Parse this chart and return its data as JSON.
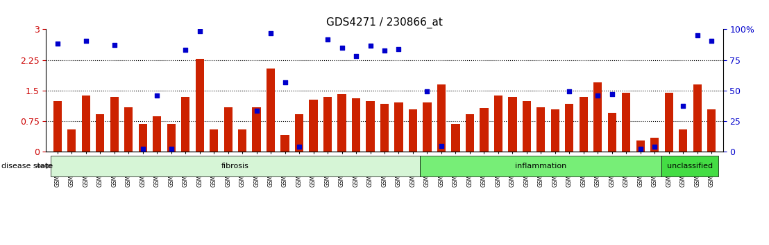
{
  "title": "GDS4271 / 230866_at",
  "samples": [
    "GSM380382",
    "GSM380383",
    "GSM380384",
    "GSM380385",
    "GSM380386",
    "GSM380387",
    "GSM380388",
    "GSM380389",
    "GSM380390",
    "GSM380391",
    "GSM380392",
    "GSM380393",
    "GSM380394",
    "GSM380395",
    "GSM380396",
    "GSM380397",
    "GSM380398",
    "GSM380399",
    "GSM380400",
    "GSM380401",
    "GSM380402",
    "GSM380403",
    "GSM380404",
    "GSM380405",
    "GSM380406",
    "GSM380407",
    "GSM380408",
    "GSM380409",
    "GSM380410",
    "GSM380411",
    "GSM380412",
    "GSM380413",
    "GSM380414",
    "GSM380415",
    "GSM380416",
    "GSM380417",
    "GSM380418",
    "GSM380419",
    "GSM380420",
    "GSM380421",
    "GSM380422",
    "GSM380423",
    "GSM380424",
    "GSM380425",
    "GSM380426",
    "GSM380427",
    "GSM380428"
  ],
  "bar_values": [
    1.25,
    0.55,
    1.38,
    0.92,
    1.35,
    1.1,
    0.68,
    0.88,
    0.68,
    1.35,
    2.28,
    0.55,
    1.1,
    0.55,
    1.1,
    2.05,
    0.42,
    0.92,
    1.28,
    1.35,
    1.42,
    1.32,
    1.25,
    1.18,
    1.22,
    1.05,
    1.22,
    1.65,
    0.68,
    0.92,
    1.08,
    1.38,
    1.35,
    1.25,
    1.1,
    1.05,
    1.18,
    1.35,
    1.7,
    0.95,
    1.45,
    0.28,
    0.35,
    1.45,
    0.55,
    1.65,
    1.05
  ],
  "dot_values": [
    2.65,
    0.0,
    2.72,
    0.0,
    2.62,
    0.0,
    0.08,
    1.38,
    0.08,
    2.5,
    2.95,
    0.0,
    0.0,
    0.0,
    1.0,
    2.9,
    1.7,
    0.12,
    0.0,
    2.75,
    2.55,
    2.35,
    2.6,
    2.48,
    2.52,
    0.0,
    1.48,
    0.15,
    0.0,
    0.0,
    0.0,
    0.0,
    0.0,
    0.0,
    0.0,
    0.0,
    1.48,
    0.0,
    1.38,
    1.42,
    0.0,
    0.08,
    0.12,
    0.0,
    1.12,
    2.85,
    2.72
  ],
  "groups": [
    {
      "label": "fibrosis",
      "start": 0,
      "end": 26,
      "color": "#d6f5d6"
    },
    {
      "label": "inflammation",
      "start": 26,
      "end": 43,
      "color": "#77ee77"
    },
    {
      "label": "unclassified",
      "start": 43,
      "end": 47,
      "color": "#44dd44"
    }
  ],
  "bar_color": "#cc2200",
  "dot_color": "#0000cc",
  "ylim_left": [
    0,
    3.0
  ],
  "ylim_right": [
    0,
    100
  ],
  "yticks_left": [
    0,
    0.75,
    1.5,
    2.25,
    3.0
  ],
  "ytick_labels_left": [
    "0",
    "0.75",
    "1.5",
    "2.25",
    "3"
  ],
  "yticks_right": [
    0,
    25,
    50,
    75,
    100
  ],
  "ytick_labels_right": [
    "0",
    "25",
    "50",
    "75",
    "100%"
  ],
  "hlines": [
    0.75,
    1.5,
    2.25
  ],
  "background_color": "#ffffff",
  "left_tick_color": "#cc0000",
  "right_tick_color": "#0000cc",
  "disease_state_label": "disease state"
}
